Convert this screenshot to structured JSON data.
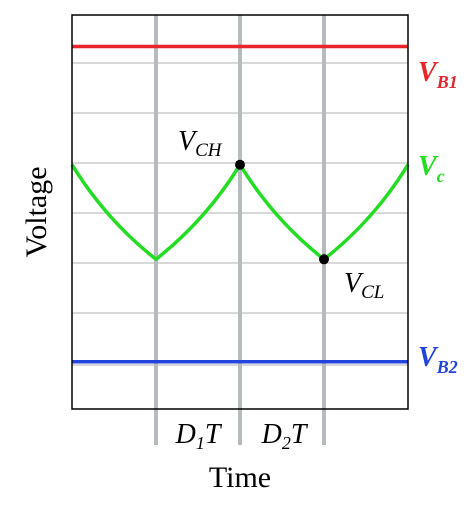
{
  "chart_data": {
    "type": "line",
    "xlabel": "Time",
    "ylabel": "Voltage",
    "interval_labels": [
      {
        "main": "D",
        "sub": "1",
        "suffix": "T"
      },
      {
        "main": "D",
        "sub": "2",
        "suffix": "T"
      }
    ],
    "series": [
      {
        "name": "V_B1",
        "label_main": "V",
        "label_sub": "B1",
        "color": "#e8262a",
        "y": 0.92
      },
      {
        "name": "V_c",
        "label_main": "V",
        "label_sub": "c",
        "color": "#22dd22",
        "x": [
          0.0,
          0.25,
          0.5,
          0.75,
          1.0
        ],
        "y": [
          0.62,
          0.38,
          0.62,
          0.38,
          0.62
        ]
      },
      {
        "name": "V_B2",
        "label_main": "V",
        "label_sub": "B2",
        "color": "#2244dd",
        "y": 0.12
      }
    ],
    "annotations": [
      {
        "label_main": "V",
        "label_sub": "CH",
        "x": 0.5,
        "y": 0.62
      },
      {
        "label_main": "V",
        "label_sub": "CL",
        "x": 0.75,
        "y": 0.38
      }
    ],
    "xlim": [
      0,
      1
    ],
    "ylim": [
      0,
      1
    ],
    "grid": true
  }
}
